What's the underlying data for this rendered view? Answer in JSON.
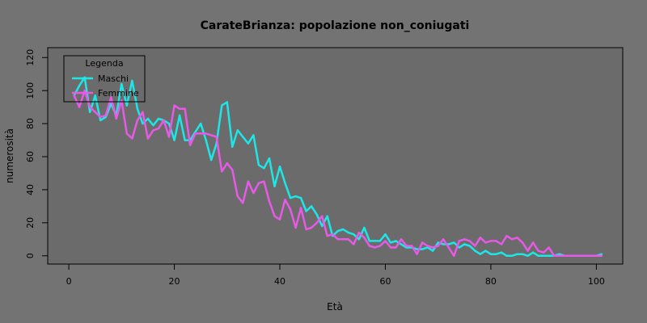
{
  "chart_data": {
    "type": "line",
    "title": "CarateBrianza: popolazione non_coniugati",
    "xlabel": "Età",
    "ylabel": "numerosità",
    "xlim": [
      -4,
      105
    ],
    "ylim": [
      -5,
      126
    ],
    "x_ticks": [
      0,
      20,
      40,
      60,
      80,
      100
    ],
    "y_ticks": [
      0,
      20,
      40,
      60,
      80,
      100,
      120
    ],
    "legend": {
      "title": "Legenda",
      "position": "top-left"
    },
    "background_color": "#737373",
    "plot_background_color": "#6b6b6b",
    "series": [
      {
        "name": "Maschi",
        "color": "#1ee6e6",
        "x": [
          1,
          2,
          3,
          4,
          5,
          6,
          7,
          8,
          9,
          10,
          11,
          12,
          13,
          14,
          15,
          16,
          17,
          18,
          19,
          20,
          21,
          22,
          23,
          24,
          25,
          26,
          27,
          28,
          29,
          30,
          31,
          32,
          33,
          34,
          35,
          36,
          37,
          38,
          39,
          40,
          41,
          42,
          43,
          44,
          45,
          46,
          47,
          48,
          49,
          50,
          51,
          52,
          53,
          54,
          55,
          56,
          57,
          58,
          59,
          60,
          61,
          62,
          63,
          64,
          65,
          66,
          67,
          68,
          69,
          70,
          71,
          72,
          73,
          74,
          75,
          76,
          77,
          78,
          79,
          80,
          81,
          82,
          83,
          84,
          85,
          86,
          87,
          88,
          89,
          90,
          91,
          92,
          93,
          94,
          95,
          96,
          97,
          98,
          99,
          100,
          101
        ],
        "values": [
          97,
          103,
          108,
          87,
          97,
          82,
          84,
          92,
          85,
          104,
          91,
          106,
          89,
          80,
          83,
          79,
          83,
          82,
          80,
          70,
          85,
          70,
          70,
          75,
          80,
          70,
          58,
          68,
          91,
          93,
          66,
          76,
          72,
          68,
          73,
          55,
          53,
          59,
          42,
          54,
          44,
          35,
          36,
          35,
          27,
          30,
          25,
          18,
          24,
          12,
          15,
          16,
          14,
          13,
          10,
          17,
          9,
          9,
          9,
          13,
          8,
          9,
          7,
          5,
          5,
          4,
          4,
          5,
          3,
          8,
          7,
          7,
          8,
          5,
          7,
          6,
          3,
          1,
          3,
          1,
          1,
          2,
          0,
          0,
          1,
          1,
          0,
          2,
          0,
          0,
          0,
          0,
          1,
          0,
          0,
          0,
          0,
          0,
          0,
          0,
          1
        ]
      },
      {
        "name": "Femmine",
        "color": "#e65ae6",
        "x": [
          1,
          2,
          3,
          4,
          5,
          6,
          7,
          8,
          9,
          10,
          11,
          12,
          13,
          14,
          15,
          16,
          17,
          18,
          19,
          20,
          21,
          22,
          23,
          24,
          25,
          26,
          27,
          28,
          29,
          30,
          31,
          32,
          33,
          34,
          35,
          36,
          37,
          38,
          39,
          40,
          41,
          42,
          43,
          44,
          45,
          46,
          47,
          48,
          49,
          50,
          51,
          52,
          53,
          54,
          55,
          56,
          57,
          58,
          59,
          60,
          61,
          62,
          63,
          64,
          65,
          66,
          67,
          68,
          69,
          70,
          71,
          72,
          73,
          74,
          75,
          76,
          77,
          78,
          79,
          80,
          81,
          82,
          83,
          84,
          85,
          86,
          87,
          88,
          89,
          90,
          91,
          92,
          93,
          94,
          95,
          96,
          97,
          98,
          99,
          100,
          101
        ],
        "values": [
          97,
          90,
          100,
          90,
          87,
          84,
          85,
          96,
          83,
          94,
          74,
          71,
          82,
          87,
          71,
          76,
          77,
          82,
          72,
          91,
          89,
          89,
          67,
          74,
          74,
          74,
          73,
          72,
          51,
          56,
          52,
          36,
          32,
          45,
          38,
          44,
          45,
          33,
          24,
          22,
          34,
          28,
          17,
          29,
          16,
          17,
          20,
          24,
          12,
          13,
          10,
          10,
          10,
          7,
          14,
          11,
          6,
          5,
          6,
          9,
          5,
          5,
          10,
          6,
          6,
          1,
          8,
          6,
          5,
          6,
          10,
          5,
          0,
          9,
          10,
          9,
          6,
          11,
          8,
          9,
          9,
          7,
          12,
          10,
          11,
          8,
          3,
          8,
          3,
          2,
          5,
          0,
          0,
          0,
          0,
          0,
          0,
          0,
          0,
          0,
          0
        ]
      }
    ]
  }
}
